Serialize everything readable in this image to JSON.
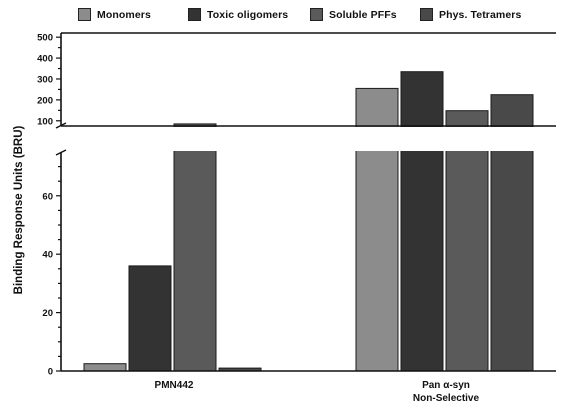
{
  "chart_data": {
    "type": "bar",
    "title": "",
    "xlabel": "",
    "ylabel": "Binding Response Units (BRU)",
    "categories": [
      "PMN442",
      "Pan α-syn\nNon-Selective"
    ],
    "series": [
      {
        "name": "Monomers",
        "color": "#8c8c8c",
        "values": [
          2.5,
          255
        ]
      },
      {
        "name": "Toxic oligomers",
        "color": "#333333",
        "values": [
          36,
          335
        ]
      },
      {
        "name": "Soluble PFFs",
        "color": "#5a5a5a",
        "values": [
          85,
          148
        ]
      },
      {
        "name": "Phys. Tetramers",
        "color": "#494949",
        "values": [
          1,
          225
        ]
      }
    ],
    "y_axis": {
      "type": "broken",
      "lower_range": [
        0,
        75
      ],
      "lower_ticks": [
        0,
        20,
        40,
        60
      ],
      "upper_range": [
        75,
        520
      ],
      "upper_ticks": [
        100,
        200,
        300,
        400,
        500
      ]
    },
    "grid": false,
    "legend_position": "top"
  }
}
